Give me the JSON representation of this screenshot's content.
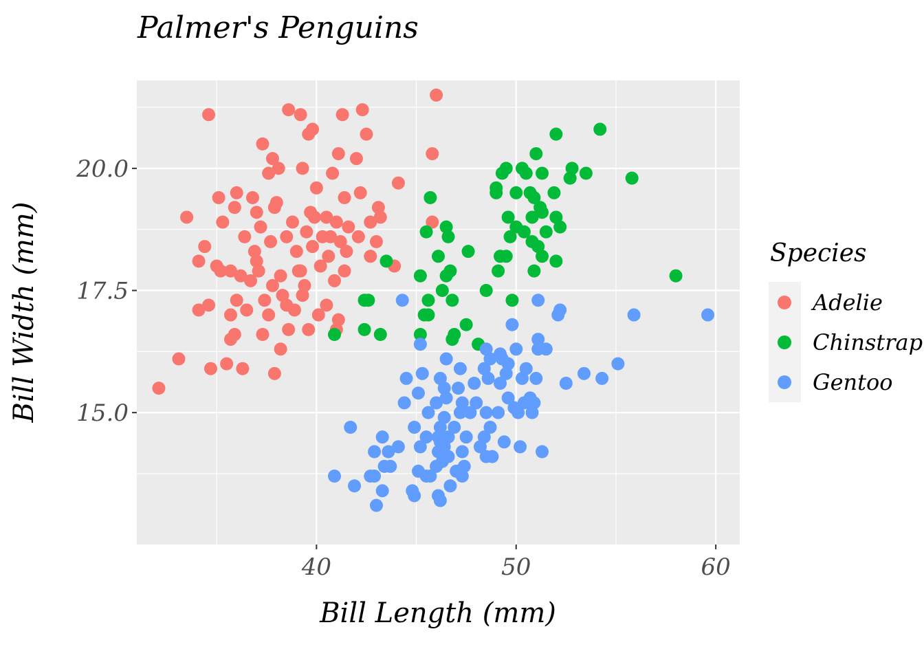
{
  "chart_data": {
    "type": "scatter",
    "title": "Palmer's Penguins",
    "xlabel": "Bill Length (mm)",
    "ylabel": "Bill Width (mm)",
    "xlim": [
      31.0,
      61.2
    ],
    "ylim": [
      12.3,
      21.8
    ],
    "x_ticks": [
      40,
      50,
      60
    ],
    "x_tick_labels": [
      "40",
      "50",
      "60"
    ],
    "y_ticks": [
      15.0,
      17.5,
      20.0
    ],
    "y_tick_labels": [
      "15.0",
      "17.5",
      "20.0"
    ],
    "grid": true,
    "legend": {
      "title": "Species",
      "placement": "right"
    },
    "series": [
      {
        "name": "Adelie",
        "color": "#F8766D",
        "points": [
          [
            46.0,
            21.5
          ],
          [
            38.6,
            21.2
          ],
          [
            34.6,
            21.1
          ],
          [
            39.2,
            21.1
          ],
          [
            42.3,
            21.2
          ],
          [
            41.3,
            21.1
          ],
          [
            42.5,
            20.7
          ],
          [
            39.6,
            20.7
          ],
          [
            39.8,
            20.8
          ],
          [
            37.8,
            20.2
          ],
          [
            37.3,
            20.5
          ],
          [
            45.8,
            20.3
          ],
          [
            41.1,
            20.3
          ],
          [
            40.8,
            19.9
          ],
          [
            42.0,
            20.2
          ],
          [
            39.3,
            20.0
          ],
          [
            38.1,
            20.0
          ],
          [
            37.6,
            19.9
          ],
          [
            40.0,
            19.6
          ],
          [
            41.4,
            19.4
          ],
          [
            42.2,
            19.5
          ],
          [
            43.1,
            19.2
          ],
          [
            44.1,
            19.7
          ],
          [
            36.0,
            19.5
          ],
          [
            36.8,
            19.4
          ],
          [
            38.0,
            19.3
          ],
          [
            35.1,
            19.4
          ],
          [
            35.9,
            19.2
          ],
          [
            33.5,
            19.0
          ],
          [
            35.3,
            18.9
          ],
          [
            37.0,
            19.1
          ],
          [
            37.9,
            19.2
          ],
          [
            39.7,
            19.1
          ],
          [
            40.5,
            19.0
          ],
          [
            41.0,
            18.9
          ],
          [
            41.6,
            18.8
          ],
          [
            42.7,
            18.9
          ],
          [
            43.2,
            19.0
          ],
          [
            45.8,
            18.9
          ],
          [
            37.2,
            18.8
          ],
          [
            38.8,
            18.9
          ],
          [
            39.5,
            18.7
          ],
          [
            40.3,
            18.6
          ],
          [
            41.2,
            18.5
          ],
          [
            42.1,
            18.6
          ],
          [
            43.0,
            18.5
          ],
          [
            36.4,
            18.6
          ],
          [
            37.7,
            18.5
          ],
          [
            39.0,
            18.3
          ],
          [
            39.8,
            18.4
          ],
          [
            40.6,
            18.2
          ],
          [
            41.5,
            18.3
          ],
          [
            42.7,
            18.2
          ],
          [
            34.4,
            18.4
          ],
          [
            34.1,
            18.1
          ],
          [
            35.0,
            18.0
          ],
          [
            35.7,
            17.9
          ],
          [
            36.2,
            17.8
          ],
          [
            37.1,
            17.9
          ],
          [
            38.2,
            17.8
          ],
          [
            39.1,
            17.9
          ],
          [
            40.2,
            18.0
          ],
          [
            41.4,
            17.9
          ],
          [
            43.9,
            18.0
          ],
          [
            35.2,
            17.9
          ],
          [
            36.7,
            17.7
          ],
          [
            37.8,
            17.6
          ],
          [
            39.4,
            17.6
          ],
          [
            40.9,
            17.7
          ],
          [
            36.0,
            17.3
          ],
          [
            37.4,
            17.3
          ],
          [
            38.5,
            17.2
          ],
          [
            39.3,
            17.4
          ],
          [
            40.5,
            17.2
          ],
          [
            34.1,
            17.1
          ],
          [
            34.6,
            17.2
          ],
          [
            35.7,
            17.0
          ],
          [
            36.5,
            17.1
          ],
          [
            37.6,
            17.0
          ],
          [
            38.9,
            17.1
          ],
          [
            40.1,
            17.0
          ],
          [
            41.1,
            16.9
          ],
          [
            35.9,
            16.6
          ],
          [
            37.3,
            16.6
          ],
          [
            38.6,
            16.7
          ],
          [
            39.6,
            16.7
          ],
          [
            35.7,
            16.5
          ],
          [
            38.2,
            16.3
          ],
          [
            35.5,
            16.0
          ],
          [
            36.3,
            15.9
          ],
          [
            37.9,
            15.8
          ],
          [
            34.7,
            15.9
          ],
          [
            33.1,
            16.1
          ],
          [
            32.1,
            15.5
          ],
          [
            41.0,
            16.7
          ],
          [
            37.0,
            18.1
          ],
          [
            38.5,
            18.6
          ],
          [
            39.9,
            19.0
          ],
          [
            40.7,
            18.6
          ],
          [
            36.9,
            18.3
          ],
          [
            38.3,
            17.4
          ],
          [
            39.2,
            17.9
          ]
        ]
      },
      {
        "name": "Chinstrap",
        "color": "#00BA38",
        "points": [
          [
            54.2,
            20.8
          ],
          [
            52.0,
            20.7
          ],
          [
            51.0,
            20.3
          ],
          [
            49.5,
            20.0
          ],
          [
            50.3,
            20.0
          ],
          [
            52.8,
            20.0
          ],
          [
            49.3,
            19.9
          ],
          [
            50.5,
            19.9
          ],
          [
            51.3,
            19.9
          ],
          [
            53.5,
            19.9
          ],
          [
            52.7,
            19.8
          ],
          [
            55.8,
            19.8
          ],
          [
            49.0,
            19.6
          ],
          [
            50.0,
            19.5
          ],
          [
            50.7,
            19.5
          ],
          [
            51.9,
            19.5
          ],
          [
            50.9,
            19.4
          ],
          [
            45.7,
            19.4
          ],
          [
            49.0,
            19.5
          ],
          [
            51.2,
            19.2
          ],
          [
            49.6,
            19.0
          ],
          [
            50.8,
            19.0
          ],
          [
            51.3,
            19.1
          ],
          [
            52.0,
            19.0
          ],
          [
            46.5,
            18.8
          ],
          [
            50.0,
            18.8
          ],
          [
            50.4,
            18.7
          ],
          [
            51.5,
            18.7
          ],
          [
            52.2,
            18.8
          ],
          [
            45.5,
            18.7
          ],
          [
            46.6,
            18.6
          ],
          [
            49.7,
            18.6
          ],
          [
            50.8,
            18.5
          ],
          [
            51.1,
            18.4
          ],
          [
            47.6,
            18.3
          ],
          [
            49.2,
            18.2
          ],
          [
            49.5,
            18.2
          ],
          [
            46.1,
            18.2
          ],
          [
            51.3,
            18.2
          ],
          [
            52.0,
            18.1
          ],
          [
            43.5,
            18.1
          ],
          [
            58.0,
            17.8
          ],
          [
            49.1,
            17.9
          ],
          [
            50.9,
            17.9
          ],
          [
            46.7,
            17.9
          ],
          [
            46.5,
            17.8
          ],
          [
            45.2,
            17.8
          ],
          [
            46.3,
            17.5
          ],
          [
            48.5,
            17.5
          ],
          [
            42.4,
            17.3
          ],
          [
            42.6,
            17.3
          ],
          [
            45.6,
            17.3
          ],
          [
            46.8,
            17.3
          ],
          [
            49.8,
            17.3
          ],
          [
            45.4,
            17.0
          ],
          [
            45.6,
            17.0
          ],
          [
            47.5,
            16.8
          ],
          [
            42.4,
            16.7
          ],
          [
            43.2,
            16.6
          ],
          [
            45.2,
            16.6
          ],
          [
            46.9,
            16.6
          ],
          [
            46.8,
            16.5
          ],
          [
            48.1,
            16.4
          ],
          [
            40.9,
            16.6
          ]
        ]
      },
      {
        "name": "Gentoo",
        "color": "#619CFF",
        "points": [
          [
            59.6,
            17.0
          ],
          [
            55.9,
            17.0
          ],
          [
            52.2,
            17.1
          ],
          [
            52.1,
            17.0
          ],
          [
            51.1,
            17.3
          ],
          [
            44.3,
            17.3
          ],
          [
            49.8,
            16.8
          ],
          [
            51.1,
            16.5
          ],
          [
            51.5,
            16.3
          ],
          [
            51.1,
            16.3
          ],
          [
            50.0,
            16.3
          ],
          [
            48.7,
            16.1
          ],
          [
            49.2,
            16.2
          ],
          [
            49.6,
            16.0
          ],
          [
            50.5,
            15.9
          ],
          [
            48.5,
            16.3
          ],
          [
            45.2,
            16.4
          ],
          [
            46.5,
            16.1
          ],
          [
            55.1,
            16.0
          ],
          [
            47.2,
            15.9
          ],
          [
            48.4,
            15.9
          ],
          [
            49.5,
            15.8
          ],
          [
            50.3,
            15.7
          ],
          [
            51.0,
            15.7
          ],
          [
            53.4,
            15.8
          ],
          [
            54.3,
            15.7
          ],
          [
            52.5,
            15.6
          ],
          [
            44.5,
            15.7
          ],
          [
            45.3,
            15.8
          ],
          [
            46.2,
            15.7
          ],
          [
            46.4,
            15.5
          ],
          [
            47.1,
            15.5
          ],
          [
            47.9,
            15.6
          ],
          [
            48.6,
            15.7
          ],
          [
            49.2,
            15.6
          ],
          [
            45.1,
            15.4
          ],
          [
            46.5,
            15.3
          ],
          [
            47.3,
            15.2
          ],
          [
            49.6,
            15.3
          ],
          [
            50.4,
            15.2
          ],
          [
            50.9,
            15.2
          ],
          [
            46.0,
            15.2
          ],
          [
            48.0,
            15.2
          ],
          [
            44.4,
            15.2
          ],
          [
            45.6,
            15.0
          ],
          [
            46.4,
            14.9
          ],
          [
            47.2,
            15.0
          ],
          [
            47.7,
            15.0
          ],
          [
            48.5,
            15.0
          ],
          [
            49.1,
            15.0
          ],
          [
            50.1,
            15.0
          ],
          [
            50.8,
            15.0
          ],
          [
            49.9,
            15.1
          ],
          [
            41.7,
            14.7
          ],
          [
            44.9,
            14.7
          ],
          [
            46.2,
            14.7
          ],
          [
            46.9,
            14.7
          ],
          [
            48.7,
            14.7
          ],
          [
            46.1,
            14.5
          ],
          [
            46.6,
            14.5
          ],
          [
            47.5,
            14.5
          ],
          [
            48.4,
            14.5
          ],
          [
            49.4,
            14.4
          ],
          [
            43.3,
            14.5
          ],
          [
            45.5,
            14.5
          ],
          [
            44.1,
            14.3
          ],
          [
            45.2,
            14.3
          ],
          [
            46.2,
            14.4
          ],
          [
            46.4,
            14.3
          ],
          [
            47.3,
            14.2
          ],
          [
            50.2,
            14.3
          ],
          [
            42.9,
            14.2
          ],
          [
            43.6,
            14.2
          ],
          [
            46.1,
            14.2
          ],
          [
            46.6,
            14.1
          ],
          [
            48.5,
            14.1
          ],
          [
            48.8,
            14.1
          ],
          [
            51.3,
            14.2
          ],
          [
            43.4,
            13.9
          ],
          [
            43.7,
            13.9
          ],
          [
            45.1,
            13.8
          ],
          [
            45.7,
            13.7
          ],
          [
            46.0,
            13.9
          ],
          [
            47.4,
            13.9
          ],
          [
            40.9,
            13.7
          ],
          [
            42.7,
            13.7
          ],
          [
            42.9,
            13.7
          ],
          [
            45.5,
            13.7
          ],
          [
            47.3,
            13.7
          ],
          [
            41.9,
            13.5
          ],
          [
            43.3,
            13.4
          ],
          [
            44.9,
            13.3
          ],
          [
            46.1,
            13.3
          ],
          [
            46.7,
            13.5
          ],
          [
            43.0,
            13.1
          ],
          [
            46.2,
            13.2
          ],
          [
            47.0,
            13.8
          ],
          [
            46.3,
            14.0
          ],
          [
            44.8,
            13.4
          ],
          [
            48.2,
            14.3
          ],
          [
            49.3,
            16.1
          ],
          [
            50.7,
            15.3
          ]
        ]
      }
    ]
  }
}
